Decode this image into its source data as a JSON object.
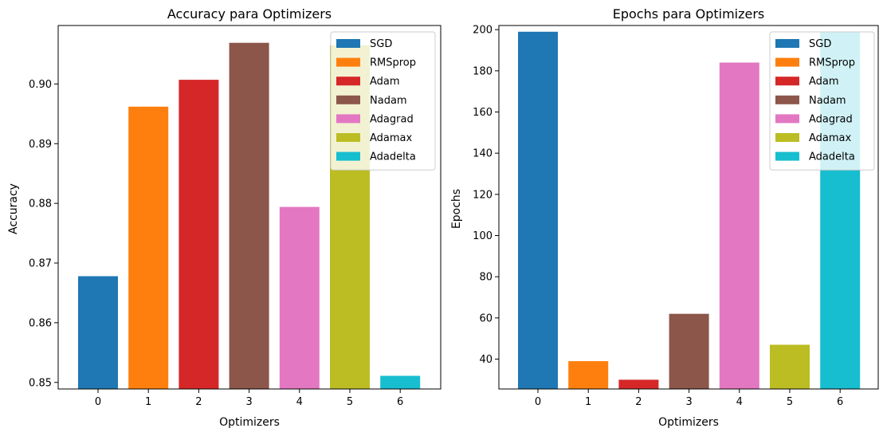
{
  "chart_data": [
    {
      "type": "bar",
      "title": "Accuracy para Optimizers",
      "xlabel": "Optimizers",
      "ylabel": "Accuracy",
      "categories": [
        "0",
        "1",
        "2",
        "3",
        "4",
        "5",
        "6"
      ],
      "values": [
        0.8678,
        0.8962,
        0.9007,
        0.9069,
        0.8794,
        0.9065,
        0.8511
      ],
      "series_names": [
        "SGD",
        "RMSprop",
        "Adam",
        "Nadam",
        "Adagrad",
        "Adamax",
        "Adadelta"
      ],
      "colors": [
        "#1f77b4",
        "#ff7f0e",
        "#d62728",
        "#8c564b",
        "#e377c2",
        "#bcbd22",
        "#17becf"
      ],
      "ylim": [
        0.8489,
        0.9098
      ],
      "yticks": [
        0.85,
        0.86,
        0.87,
        0.88,
        0.89,
        0.9
      ],
      "ytick_labels": [
        "0.85",
        "0.86",
        "0.87",
        "0.88",
        "0.89",
        "0.90"
      ],
      "legend_position": "upper right",
      "grid": false
    },
    {
      "type": "bar",
      "title": "Epochs para Optimizers",
      "xlabel": "Optimizers",
      "ylabel": "Epochs",
      "categories": [
        "0",
        "1",
        "2",
        "3",
        "4",
        "5",
        "6"
      ],
      "values": [
        199,
        39,
        30,
        62,
        184,
        47,
        199
      ],
      "series_names": [
        "SGD",
        "RMSprop",
        "Adam",
        "Nadam",
        "Adagrad",
        "Adamax",
        "Adadelta"
      ],
      "colors": [
        "#1f77b4",
        "#ff7f0e",
        "#d62728",
        "#8c564b",
        "#e377c2",
        "#bcbd22",
        "#17becf"
      ],
      "ylim": [
        25.5,
        202
      ],
      "yticks": [
        40,
        60,
        80,
        100,
        120,
        140,
        160,
        180,
        200
      ],
      "ytick_labels": [
        "40",
        "60",
        "80",
        "100",
        "120",
        "140",
        "160",
        "180",
        "200"
      ],
      "legend_position": "upper right",
      "grid": false
    }
  ]
}
